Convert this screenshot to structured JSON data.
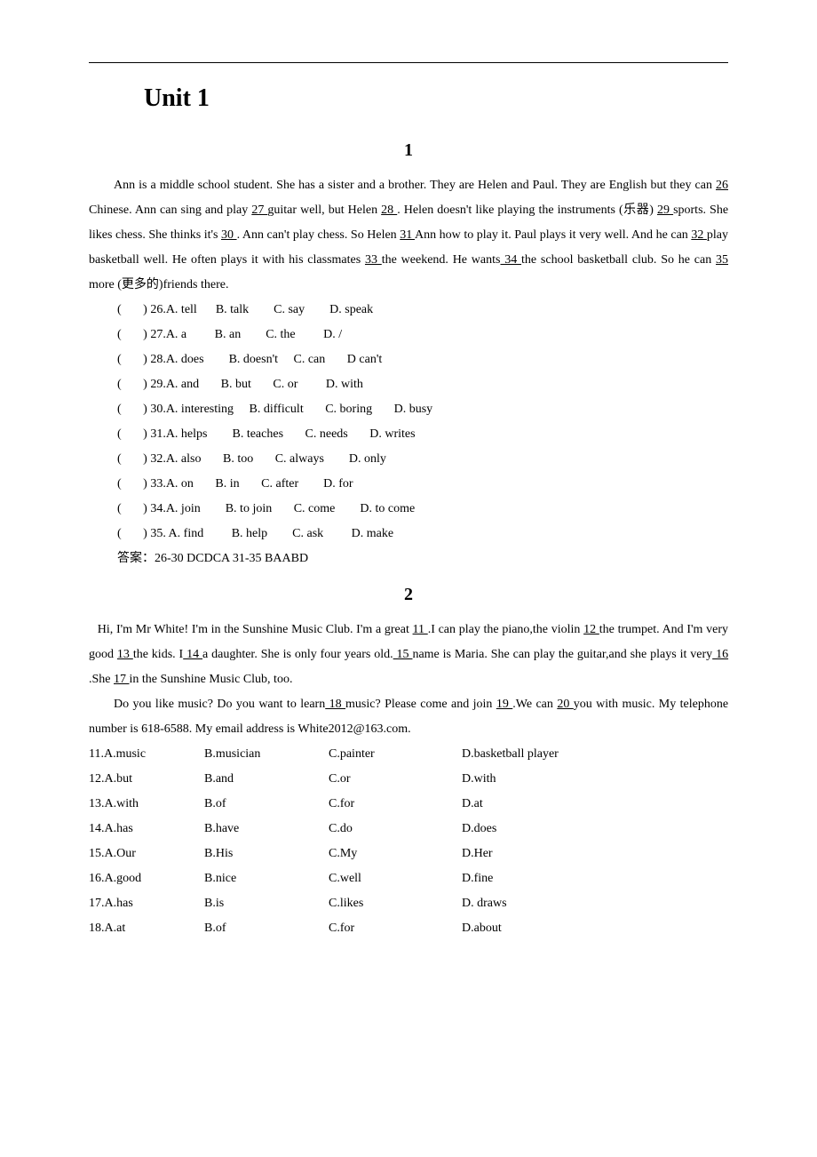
{
  "unit_title": "Unit 1",
  "section1": {
    "number": "1",
    "passage": "Ann is a middle school student. She has a sister and a brother. They are Helen and Paul. They are English but they can <u>    26    </u>Chinese. Ann can sing and play <u>   27   </u> guitar well, but Helen <u>28     </u>. Helen doesn't like playing the instruments (乐器)  <u>    29    </u> sports. She likes chess. She thinks it's <u>    30   </u>. Ann can't play chess. So Helen <u>    31    </u> Ann how to play it. Paul plays it very well. And he can <u>    32    </u> play basketball well. He often plays it with his classmates <u>    33    </u> the weekend. He wants<u>  34 </u> the school basketball club. So he can <u>   35    </u> more (更多的)friends there.",
    "questions": [
      "(       ) 26.A. tell      B. talk        C. say        D. speak",
      "(       ) 27.A. a         B. an        C. the         D. /",
      "(       ) 28.A. does        B. doesn't     C. can       D can't",
      "(       ) 29.A. and       B. but       C. or         D. with",
      "(       ) 30.A. interesting     B. difficult       C. boring       D. busy",
      "(       ) 31.A. helps        B. teaches       C. needs       D. writes",
      "(       ) 32.A. also       B. too       C. always        D. only",
      "(       ) 33.A. on       B. in       C. after        D. for",
      "(       ) 34.A. join        B. to join       C. come        D. to come",
      "(       ) 35. A. find         B. help        C. ask         D. make"
    ],
    "answer": "答案：26-30 DCDCA           31-35 BAABD"
  },
  "section2": {
    "number": "2",
    "passage_p1": "Hi, I'm Mr White! I'm in the Sunshine Music Club. I'm a great       <u>  11       </u>.I can play the piano,the violin <u>   12    </u>the trumpet. And I'm very good <u>   13     </u>the kids. I<u>   14     </u> a daughter. She is only four years old.<u>     15   </u> name is Maria. She can play the guitar,and she plays it very<u>     16   </u>.She <u>   17  </u> in the Sunshine Music Club, too.",
    "passage_p2": "Do you like music?    Do you want to learn<u>  18    </u>music? Please come and join <u>   19  </u>.We can <u>20     </u> you with music. My telephone number is 618-6588. My email address is White2012@163.com.",
    "options": [
      {
        "n": "11.A.music",
        "b": "B.musician",
        "c": "C.painter",
        "d": "D.basketball player"
      },
      {
        "n": "12.A.but",
        "b": "B.and",
        "c": "C.or",
        "d": "D.with"
      },
      {
        "n": "13.A.with",
        "b": "B.of",
        "c": "C.for",
        "d": "D.at"
      },
      {
        "n": "14.A.has",
        "b": "B.have",
        "c": "C.do",
        "d": "D.does"
      },
      {
        "n": "15.A.Our",
        "b": "B.His",
        "c": "C.My",
        "d": "D.Her"
      },
      {
        "n": "16.A.good",
        "b": "B.nice",
        "c": "C.well",
        "d": "D.fine"
      },
      {
        "n": "17.A.has",
        "b": "B.is",
        "c": "C.likes",
        "d": "D. draws"
      },
      {
        "n": "18.A.at",
        "b": "B.of",
        "c": "C.for",
        "d": "D.about"
      }
    ]
  }
}
